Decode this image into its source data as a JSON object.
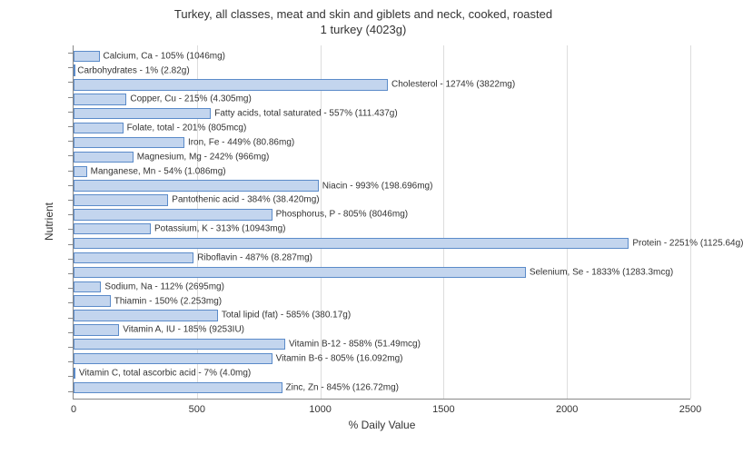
{
  "chart": {
    "type": "bar-horizontal",
    "title_line1": "Turkey, all classes, meat and skin and giblets and neck, cooked, roasted",
    "title_line2": "1 turkey (4023g)",
    "title_fontsize": 13,
    "xlabel": "% Daily Value",
    "ylabel": "Nutrient",
    "label_fontsize": 12,
    "tick_fontsize": 11,
    "bar_label_fontsize": 10,
    "xlim": [
      0,
      2500
    ],
    "xticks": [
      0,
      500,
      1000,
      1500,
      2000,
      2500
    ],
    "background_color": "#ffffff",
    "grid_color": "#dddddd",
    "axis_color": "#888888",
    "bar_fill": "#c3d5ee",
    "bar_border": "#5b8bc9",
    "text_color": "#333333",
    "nutrients": [
      {
        "name": "Calcium, Ca",
        "pct": 105,
        "amount": "1046mg",
        "label": "Calcium, Ca - 105% (1046mg)"
      },
      {
        "name": "Carbohydrates",
        "pct": 1,
        "amount": "2.82g",
        "label": "Carbohydrates - 1% (2.82g)"
      },
      {
        "name": "Cholesterol",
        "pct": 1274,
        "amount": "3822mg",
        "label": "Cholesterol - 1274% (3822mg)"
      },
      {
        "name": "Copper, Cu",
        "pct": 215,
        "amount": "4.305mg",
        "label": "Copper, Cu - 215% (4.305mg)"
      },
      {
        "name": "Fatty acids, total saturated",
        "pct": 557,
        "amount": "111.437g",
        "label": "Fatty acids, total saturated - 557% (111.437g)"
      },
      {
        "name": "Folate, total",
        "pct": 201,
        "amount": "805mcg",
        "label": "Folate, total - 201% (805mcg)"
      },
      {
        "name": "Iron, Fe",
        "pct": 449,
        "amount": "80.86mg",
        "label": "Iron, Fe - 449% (80.86mg)"
      },
      {
        "name": "Magnesium, Mg",
        "pct": 242,
        "amount": "966mg",
        "label": "Magnesium, Mg - 242% (966mg)"
      },
      {
        "name": "Manganese, Mn",
        "pct": 54,
        "amount": "1.086mg",
        "label": "Manganese, Mn - 54% (1.086mg)"
      },
      {
        "name": "Niacin",
        "pct": 993,
        "amount": "198.696mg",
        "label": "Niacin - 993% (198.696mg)"
      },
      {
        "name": "Pantothenic acid",
        "pct": 384,
        "amount": "38.420mg",
        "label": "Pantothenic acid - 384% (38.420mg)"
      },
      {
        "name": "Phosphorus, P",
        "pct": 805,
        "amount": "8046mg",
        "label": "Phosphorus, P - 805% (8046mg)"
      },
      {
        "name": "Potassium, K",
        "pct": 313,
        "amount": "10943mg",
        "label": "Potassium, K - 313% (10943mg)"
      },
      {
        "name": "Protein",
        "pct": 2251,
        "amount": "1125.64g",
        "label": "Protein - 2251% (1125.64g)"
      },
      {
        "name": "Riboflavin",
        "pct": 487,
        "amount": "8.287mg",
        "label": "Riboflavin - 487% (8.287mg)"
      },
      {
        "name": "Selenium, Se",
        "pct": 1833,
        "amount": "1283.3mcg",
        "label": "Selenium, Se - 1833% (1283.3mcg)"
      },
      {
        "name": "Sodium, Na",
        "pct": 112,
        "amount": "2695mg",
        "label": "Sodium, Na - 112% (2695mg)"
      },
      {
        "name": "Thiamin",
        "pct": 150,
        "amount": "2.253mg",
        "label": "Thiamin - 150% (2.253mg)"
      },
      {
        "name": "Total lipid (fat)",
        "pct": 585,
        "amount": "380.17g",
        "label": "Total lipid (fat) - 585% (380.17g)"
      },
      {
        "name": "Vitamin A, IU",
        "pct": 185,
        "amount": "9253IU",
        "label": "Vitamin A, IU - 185% (9253IU)"
      },
      {
        "name": "Vitamin B-12",
        "pct": 858,
        "amount": "51.49mcg",
        "label": "Vitamin B-12 - 858% (51.49mcg)"
      },
      {
        "name": "Vitamin B-6",
        "pct": 805,
        "amount": "16.092mg",
        "label": "Vitamin B-6 - 805% (16.092mg)"
      },
      {
        "name": "Vitamin C, total ascorbic acid",
        "pct": 7,
        "amount": "4.0mg",
        "label": "Vitamin C, total ascorbic acid - 7% (4.0mg)"
      },
      {
        "name": "Zinc, Zn",
        "pct": 845,
        "amount": "126.72mg",
        "label": "Zinc, Zn - 845% (126.72mg)"
      }
    ]
  }
}
